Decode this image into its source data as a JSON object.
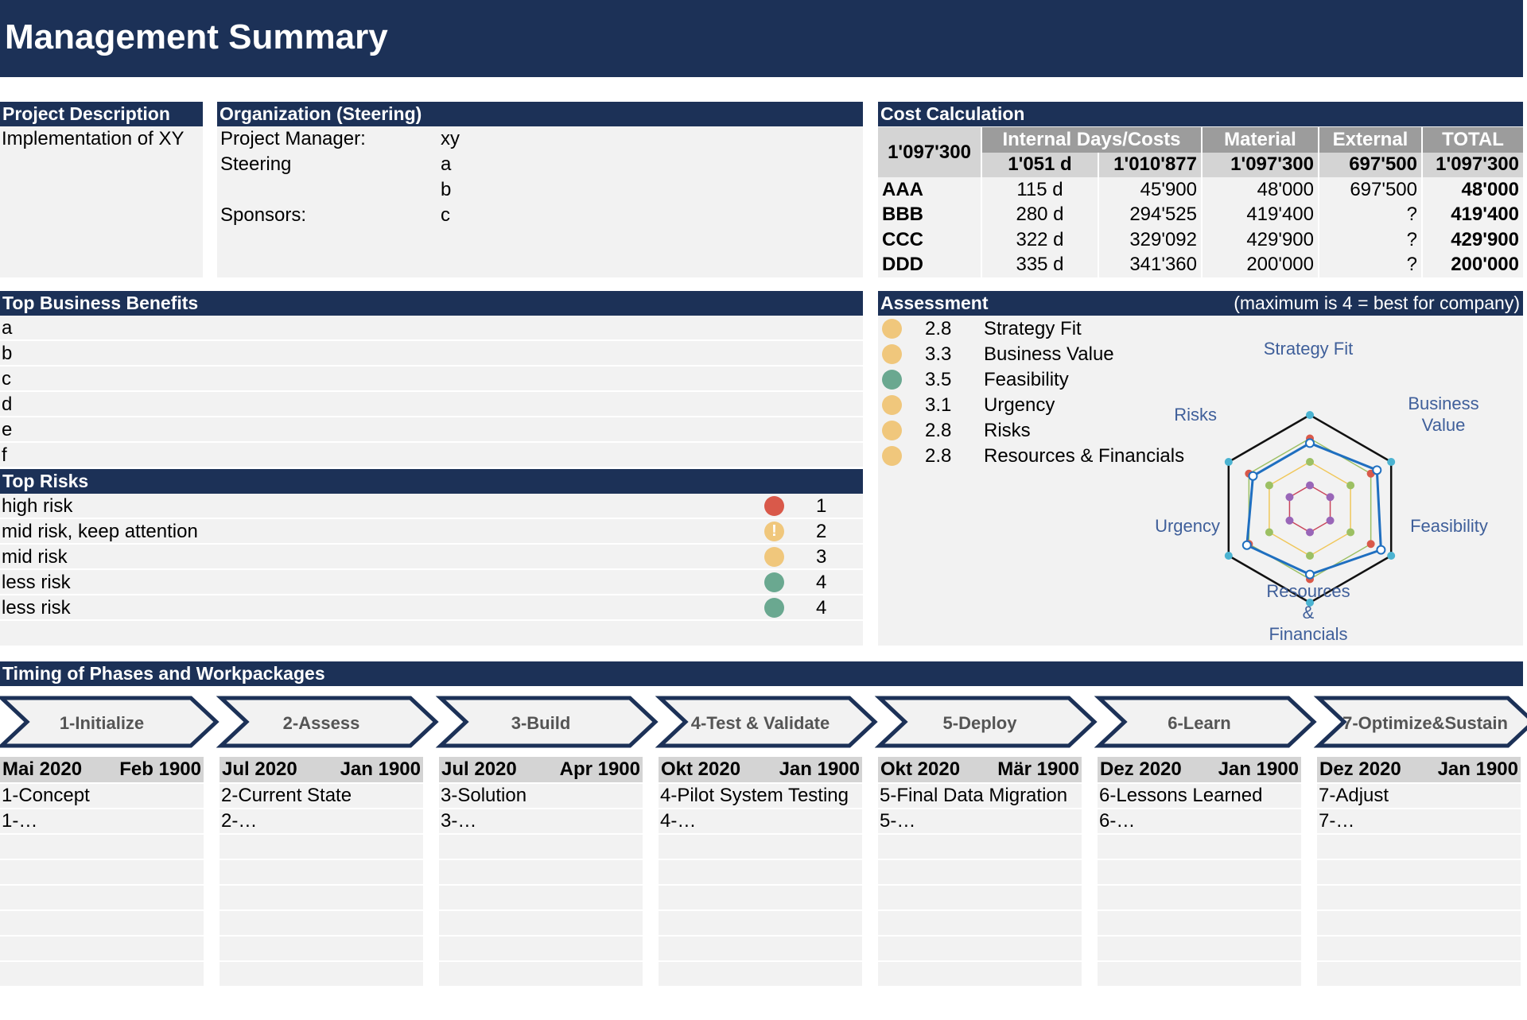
{
  "title": "Management Summary",
  "project_description": {
    "heading": "Project Description",
    "text": "Implementation of XY"
  },
  "organization": {
    "heading": "Organization (Steering)",
    "rows": [
      {
        "label": "Project Manager:",
        "value": "xy"
      },
      {
        "label": "Steering",
        "value": "a"
      },
      {
        "label": "",
        "value": "b"
      },
      {
        "label": "Sponsors:",
        "value": "c"
      }
    ]
  },
  "cost": {
    "heading": "Cost Calculation",
    "grand_total": "1'097'300",
    "col_internal": "Internal Days/Costs",
    "col_material": "Material",
    "col_external": "External",
    "col_total": "TOTAL",
    "sum_days": "1'051 d",
    "sum_internal": "1'010'877",
    "sum_material": "1'097'300",
    "sum_external": "697'500",
    "sum_total": "1'097'300",
    "rows": [
      {
        "name": "AAA",
        "days": "115 d",
        "internal": "45'900",
        "material": "48'000",
        "external": "697'500",
        "total": "48'000"
      },
      {
        "name": "BBB",
        "days": "280 d",
        "internal": "294'525",
        "material": "419'400",
        "external": "?",
        "total": "419'400"
      },
      {
        "name": "CCC",
        "days": "322 d",
        "internal": "329'092",
        "material": "429'900",
        "external": "?",
        "total": "429'900"
      },
      {
        "name": "DDD",
        "days": "335 d",
        "internal": "341'360",
        "material": "200'000",
        "external": "?",
        "total": "200'000"
      }
    ]
  },
  "benefits": {
    "heading": "Top Business Benefits",
    "items": [
      "a",
      "b",
      "c",
      "d",
      "e",
      "f"
    ]
  },
  "risks": {
    "heading": "Top Risks",
    "items": [
      {
        "label": "high risk",
        "level": "1",
        "color": "#d9594a",
        "icon": "red-dot"
      },
      {
        "label": "mid risk, keep attention",
        "level": "2",
        "color": "#f0c77c",
        "icon": "exclamation-dot"
      },
      {
        "label": "mid risk",
        "level": "3",
        "color": "#f0c77c",
        "icon": "amber-dot"
      },
      {
        "label": "less risk",
        "level": "4",
        "color": "#6aa890",
        "icon": "green-dot"
      },
      {
        "label": "less risk",
        "level": "4",
        "color": "#6aa890",
        "icon": "green-dot"
      }
    ]
  },
  "assessment": {
    "heading": "Assessment",
    "note": "(maximum is 4 = best for company)",
    "items": [
      {
        "value": "2.8",
        "name": "Strategy Fit",
        "color": "#f0c77c"
      },
      {
        "value": "3.3",
        "name": "Business Value",
        "color": "#f0c77c"
      },
      {
        "value": "3.5",
        "name": "Feasibility",
        "color": "#6aa890"
      },
      {
        "value": "3.1",
        "name": "Urgency",
        "color": "#f0c77c"
      },
      {
        "value": "2.8",
        "name": "Risks",
        "color": "#f0c77c"
      },
      {
        "value": "2.8",
        "name": "Resources & Financials",
        "color": "#f0c77c"
      }
    ],
    "radar_labels": {
      "strategy": "Strategy Fit",
      "business1": "Business",
      "business2": "Value",
      "feasibility": "Feasibility",
      "resources1": "Resources",
      "resources2": "&",
      "resources3": "Financials",
      "urgency": "Urgency",
      "risks": "Risks"
    },
    "radar_values": [
      2.8,
      3.3,
      3.5,
      3.1,
      2.8,
      2.8
    ],
    "radar_max": 4
  },
  "timing": {
    "heading": "Timing of Phases and Workpackages",
    "phases": [
      {
        "label": "1-Initialize",
        "start": "Mai 2020",
        "end": "Feb 1900",
        "wp1": "1-Concept",
        "wp2": "1-…"
      },
      {
        "label": "2-Assess",
        "start": "Jul 2020",
        "end": "Jan 1900",
        "wp1": "2-Current State",
        "wp2": "2-…"
      },
      {
        "label": "3-Build",
        "start": "Jul 2020",
        "end": "Apr 1900",
        "wp1": "3-Solution",
        "wp2": "3-…"
      },
      {
        "label": "4-Test & Validate",
        "start": "Okt 2020",
        "end": "Jan 1900",
        "wp1": "4-Pilot System Testing",
        "wp2": "4-…"
      },
      {
        "label": "5-Deploy",
        "start": "Okt 2020",
        "end": "Mär 1900",
        "wp1": "5-Final Data Migration",
        "wp2": "5-…"
      },
      {
        "label": "6-Learn",
        "start": "Dez 2020",
        "end": "Jan 1900",
        "wp1": "6-Lessons Learned",
        "wp2": "6-…"
      },
      {
        "label": "7-Optimize&Sustain",
        "start": "Dez 2020",
        "end": "Jan 1900",
        "wp1": "7-Adjust",
        "wp2": "7-…"
      }
    ]
  }
}
